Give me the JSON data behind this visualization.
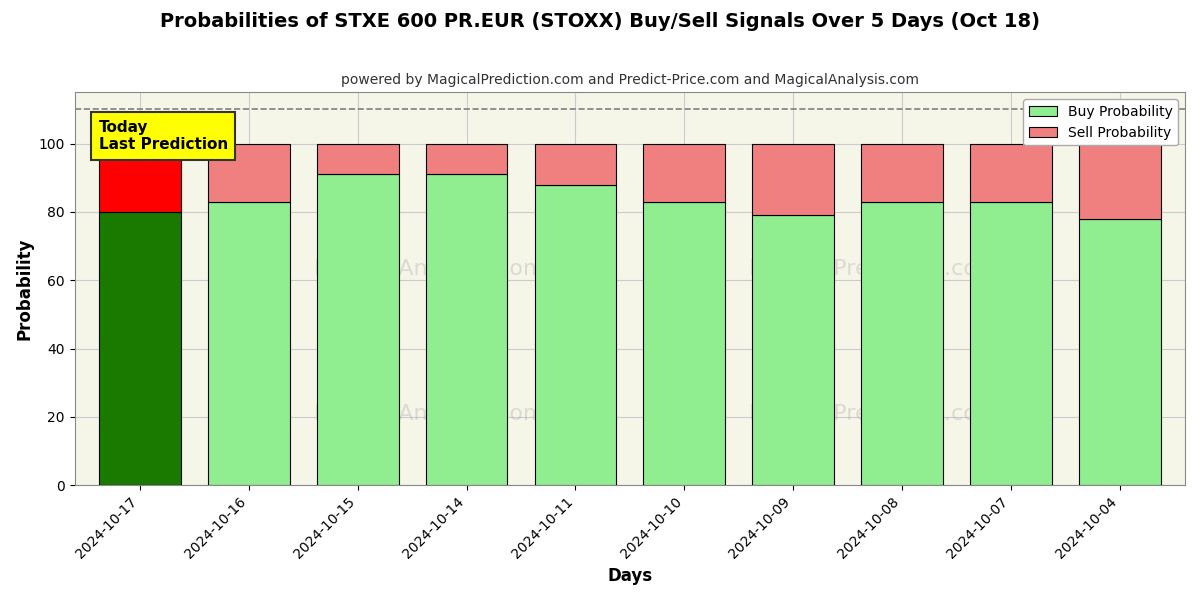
{
  "title": "Probabilities of STXE 600 PR.EUR (STOXX) Buy/Sell Signals Over 5 Days (Oct 18)",
  "subtitle": "powered by MagicalPrediction.com and Predict-Price.com and MagicalAnalysis.com",
  "xlabel": "Days",
  "ylabel": "Probability",
  "categories": [
    "2024-10-17",
    "2024-10-16",
    "2024-10-15",
    "2024-10-14",
    "2024-10-11",
    "2024-10-10",
    "2024-10-09",
    "2024-10-08",
    "2024-10-07",
    "2024-10-04"
  ],
  "buy_values": [
    80,
    83,
    91,
    91,
    88,
    83,
    79,
    83,
    83,
    78
  ],
  "sell_values": [
    20,
    17,
    9,
    9,
    12,
    17,
    21,
    17,
    17,
    22
  ],
  "today_index": 0,
  "buy_color_today": "#1a7a00",
  "sell_color_today": "#ff0000",
  "buy_color_normal": "#90ee90",
  "sell_color_normal": "#f08080",
  "today_label": "Today\nLast Prediction",
  "today_label_bg": "#ffff00",
  "dashed_line_y": 110,
  "ylim": [
    0,
    115
  ],
  "yticks": [
    0,
    20,
    40,
    60,
    80,
    100
  ],
  "legend_buy": "Buy Probability",
  "legend_sell": "Sell Probability",
  "bg_color": "#ffffff",
  "plot_bg_color": "#f5f5e8",
  "grid_color": "#cccccc",
  "bar_edge_color": "#000000",
  "bar_edge_width": 0.8,
  "bar_width": 0.75
}
